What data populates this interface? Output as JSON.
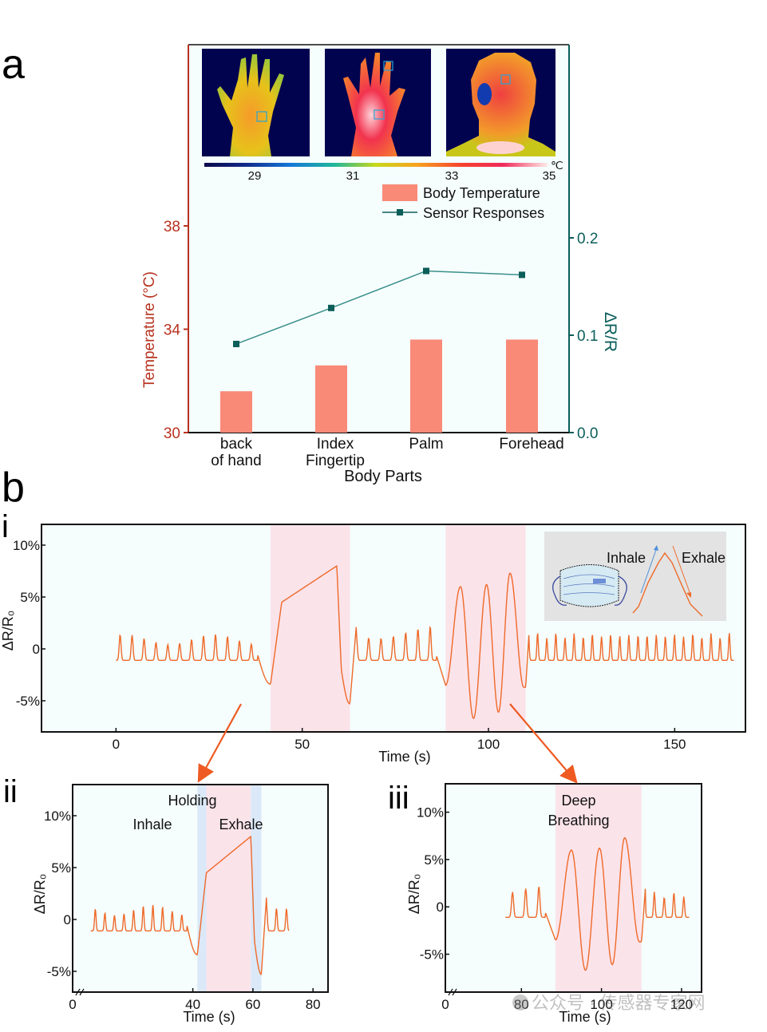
{
  "panel_labels": {
    "a": "a",
    "b": "b",
    "i": "i",
    "ii": "ii",
    "iii": "iii"
  },
  "watermark": "公众号 · 传感器专家网",
  "chart_data": [
    {
      "id": "a",
      "type": "bar",
      "secondary_type": "line",
      "title": "",
      "xlabel": "Body Parts",
      "ylabel": "Temperature (°C)",
      "y2label": "ΔR/R",
      "categories": [
        "back\nof hand",
        "Index\nFingertip",
        "Palm",
        "Forehead"
      ],
      "category_lines": [
        [
          "back",
          "of hand"
        ],
        [
          "Index",
          "Fingertip"
        ],
        [
          "Palm"
        ],
        [
          "Forehead"
        ]
      ],
      "ylim": [
        30,
        38
      ],
      "yticks": [
        30,
        34,
        38
      ],
      "y2lim": [
        0.0,
        0.2
      ],
      "y2ticks": [
        "0.0",
        "0.1",
        "0.2"
      ],
      "series": [
        {
          "name": "Body Temperature",
          "type": "bar",
          "axis": "left",
          "values": [
            31.6,
            32.6,
            33.6,
            33.6
          ],
          "color": "#f98a78"
        },
        {
          "name": "Sensor Responses",
          "type": "line",
          "axis": "right",
          "values": [
            0.091,
            0.128,
            0.166,
            0.162
          ],
          "color": "#0b5e5a"
        }
      ],
      "legend": {
        "placement": "top-right",
        "entries": [
          "Body Temperature",
          "Sensor Responses"
        ]
      },
      "colorbar": {
        "ticks": [
          "29",
          "31",
          "33",
          "35"
        ],
        "unit": "℃",
        "range": [
          28,
          35
        ]
      },
      "thermal_images": [
        "back of hand",
        "palm",
        "face"
      ],
      "colors": {
        "left_axis": "#b7321f",
        "right_axis": "#0b5e5a",
        "background": "#f5fdfd"
      }
    },
    {
      "id": "b-i",
      "type": "line",
      "xlabel": "Time (s)",
      "ylabel": "ΔR/R₀",
      "xlim": [
        -20,
        169
      ],
      "xticks": [
        "0",
        "50",
        "100",
        "150"
      ],
      "xtick_values": [
        0,
        50,
        100,
        150
      ],
      "ylim": [
        -8,
        12
      ],
      "yticks": [
        "-5%",
        "0",
        "5%",
        "10%"
      ],
      "ytick_values": [
        -5,
        0,
        5,
        10
      ],
      "shaded_regions": [
        {
          "x": [
            41.5,
            62.8
          ],
          "label": "Holding",
          "color": "#fbe3ea"
        },
        {
          "x": [
            88.5,
            110
          ],
          "label": "Deep Breathing",
          "color": "#fbe3ea"
        }
      ],
      "inset_labels": {
        "inhale": "Inhale",
        "exhale": "Exhale"
      },
      "series": [
        {
          "name": "ΔR/R₀",
          "color": "#ee6a2a"
        }
      ]
    },
    {
      "id": "b-ii",
      "type": "line",
      "xlabel": "Time (s)",
      "ylabel": "ΔR/R₀",
      "xlim": [
        0,
        85
      ],
      "xticks": [
        "0",
        "40",
        "60",
        "80"
      ],
      "xtick_values": [
        0,
        40,
        60,
        80
      ],
      "ylim": [
        -7,
        13
      ],
      "yticks": [
        "-5%",
        "0",
        "5%",
        "10%"
      ],
      "ytick_values": [
        -5,
        0,
        5,
        10
      ],
      "shaded_regions": [
        {
          "x": [
            41.5,
            44.5
          ],
          "label": "Inhale",
          "color": "#dbe8f8"
        },
        {
          "x": [
            44.5,
            59.3
          ],
          "label": "Holding",
          "color": "#fbe3ea"
        },
        {
          "x": [
            59.3,
            62.8
          ],
          "label": "Exhale",
          "color": "#dbe8f8"
        }
      ],
      "series": [
        {
          "name": "ΔR/R₀",
          "color": "#ee6a2a"
        }
      ]
    },
    {
      "id": "b-iii",
      "type": "line",
      "xlabel": "Time (s)",
      "ylabel": "ΔR/R₀",
      "xlim": [
        61,
        125
      ],
      "xticks": [
        "0",
        "80",
        "100",
        "120"
      ],
      "xtick_values": [
        61,
        80,
        100,
        120
      ],
      "ylim": [
        -9,
        13
      ],
      "yticks": [
        "-5%",
        "0",
        "5%",
        "10%"
      ],
      "ytick_values": [
        -5,
        0,
        5,
        10
      ],
      "shaded_regions": [
        {
          "x": [
            88.5,
            110
          ],
          "label": "Deep Breathing",
          "color": "#fbe3ea"
        }
      ],
      "annotation": [
        "Deep",
        "Breathing"
      ],
      "series": [
        {
          "name": "ΔR/R₀",
          "color": "#ee6a2a"
        }
      ]
    }
  ]
}
